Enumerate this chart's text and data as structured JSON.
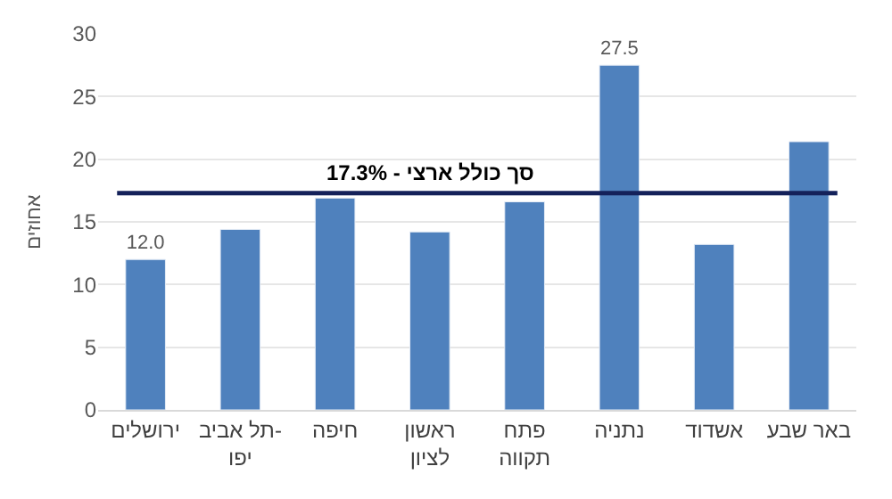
{
  "chart_data": {
    "type": "bar",
    "ylabel": "אחוזים",
    "categories": [
      "ירושלים",
      "תל אביב-\nיפו",
      "חיפה",
      "ראשון\nלציון",
      "פתח\nתקווה",
      "נתניה",
      "אשדוד",
      "באר שבע"
    ],
    "values": [
      12.0,
      14.4,
      16.9,
      14.2,
      16.6,
      27.5,
      13.2,
      21.4
    ],
    "value_labels": [
      "12.0",
      null,
      null,
      null,
      null,
      "27.5",
      null,
      null
    ],
    "color": "#4f81bd",
    "ylim": [
      0,
      30
    ],
    "yticks": [
      0,
      5,
      10,
      15,
      20,
      25,
      30
    ],
    "grid": "y",
    "ref_lines": [
      {
        "axis": "y",
        "value": 17.3,
        "label": "סך כולל ארצי - 17.3%",
        "color": "#14215a",
        "line_style": "solid"
      }
    ]
  }
}
